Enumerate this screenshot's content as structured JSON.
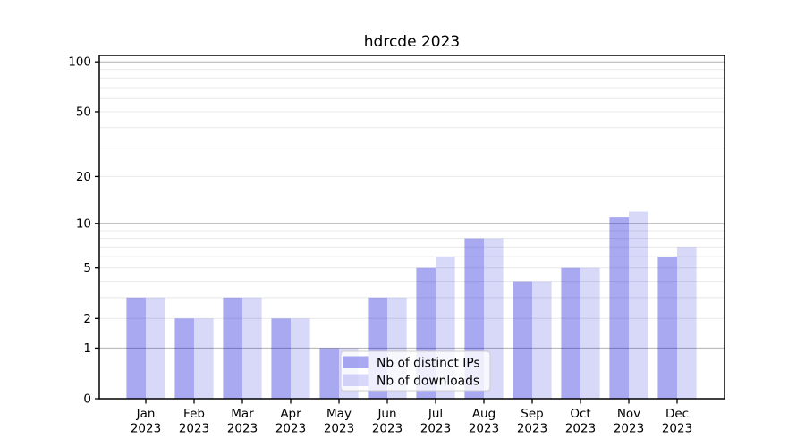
{
  "chart_data": {
    "type": "bar",
    "title": "hdrcde 2023",
    "categories": [
      "Jan",
      "Feb",
      "Mar",
      "Apr",
      "May",
      "Jun",
      "Jul",
      "Aug",
      "Sep",
      "Oct",
      "Nov",
      "Dec"
    ],
    "year": "2023",
    "series": [
      {
        "name": "Nb of distinct IPs",
        "values": [
          3,
          2,
          3,
          2,
          1,
          3,
          5,
          8,
          4,
          5,
          11,
          6
        ],
        "color": "rgba(10,10,215,0.35)"
      },
      {
        "name": "Nb of downloads",
        "values": [
          3,
          2,
          3,
          2,
          1,
          3,
          6,
          8,
          4,
          5,
          12,
          7
        ],
        "color": "rgba(10,10,215,0.16)"
      }
    ],
    "y_axis": {
      "scale": "log1p",
      "ticks": [
        0,
        1,
        2,
        5,
        10,
        20,
        50,
        100
      ],
      "major_gridlines": [
        1,
        10,
        100
      ],
      "minor_gridlines": [
        2,
        3,
        4,
        5,
        6,
        7,
        8,
        9,
        20,
        30,
        40,
        50,
        60,
        70,
        80,
        90
      ],
      "ylim": [
        0,
        110
      ]
    },
    "legend": {
      "location": "lower center"
    },
    "grid": true
  },
  "colors": {
    "background": "#ffffff",
    "bar_primary": "rgba(10,10,215,0.35)",
    "bar_secondary": "rgba(10,10,215,0.16)",
    "grid_major": "#b0b0b0",
    "grid_minor": "#e8e8e8",
    "axis": "#000000",
    "text": "#000000",
    "legend_bg": "rgba(255,255,255,0.8)",
    "legend_border": "#cccccc"
  }
}
